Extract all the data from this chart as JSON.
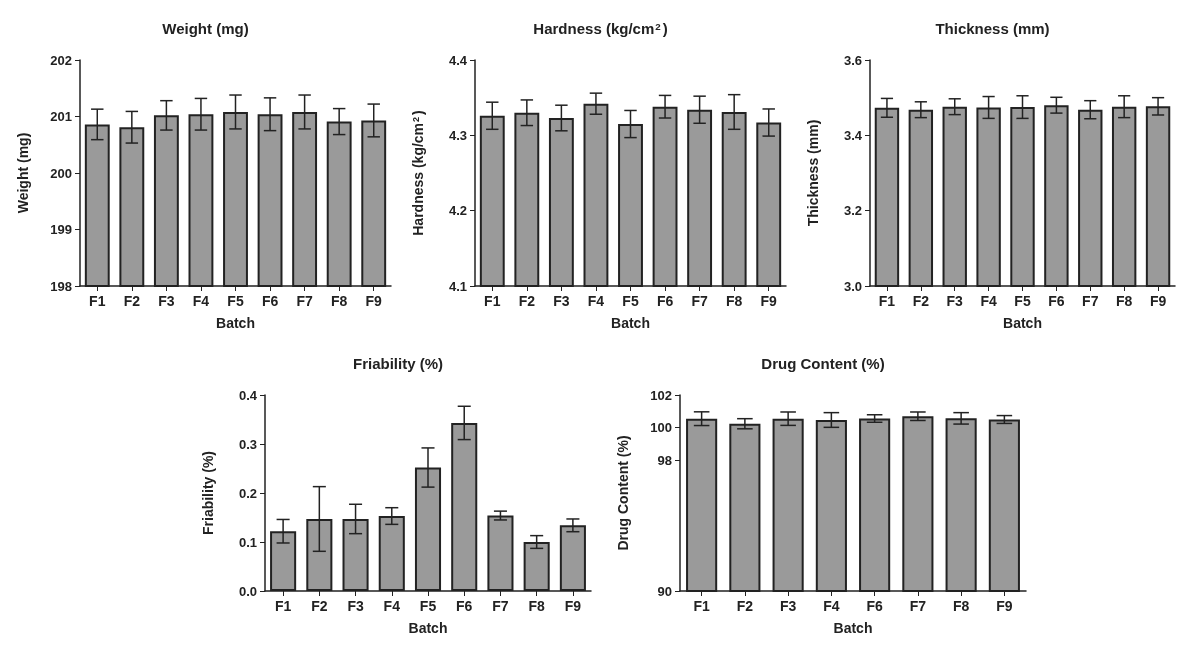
{
  "chart_data": [
    {
      "type": "bar",
      "title": "Weight (mg)",
      "xlabel": "Batch",
      "ylabel": "Weight (mg)",
      "categories": [
        "F1",
        "F2",
        "F3",
        "F4",
        "F5",
        "F6",
        "F7",
        "F8",
        "F9"
      ],
      "color": "#9a9a9a",
      "values": [
        200.86,
        200.81,
        201.02,
        201.04,
        201.08,
        201.04,
        201.08,
        200.91,
        200.93
      ],
      "errors": [
        0.27,
        0.28,
        0.26,
        0.28,
        0.3,
        0.29,
        0.3,
        0.23,
        0.29
      ],
      "ylim": [
        198,
        202
      ],
      "yticks": [
        198,
        199,
        200,
        201,
        202
      ]
    },
    {
      "type": "bar",
      "title": "Hardness (kg/cm$^{2}$)",
      "xlabel": "Batch",
      "ylabel": "Hardness (kg/cm$^{2}$)",
      "categories": [
        "F1",
        "F2",
        "F3",
        "F4",
        "F5",
        "F6",
        "F7",
        "F8",
        "F9"
      ],
      "color": "#9a9a9a",
      "values": [
        4.326,
        4.33,
        4.323,
        4.342,
        4.315,
        4.338,
        4.334,
        4.331,
        4.317
      ],
      "errors": [
        0.018,
        0.017,
        0.017,
        0.014,
        0.018,
        0.015,
        0.018,
        0.023,
        0.018
      ],
      "ylim": [
        4.1,
        4.4
      ],
      "yticks": [
        4.1,
        4.2,
        4.3,
        4.4
      ]
    },
    {
      "type": "bar",
      "title": "Thickness (mm)",
      "xlabel": "Batch",
      "ylabel": "Thickness (mm)",
      "categories": [
        "F1",
        "F2",
        "F3",
        "F4",
        "F5",
        "F6",
        "F7",
        "F8",
        "F9"
      ],
      "color": "#9a9a9a",
      "values": [
        3.473,
        3.468,
        3.476,
        3.474,
        3.475,
        3.48,
        3.468,
        3.476,
        3.477
      ],
      "errors": [
        0.025,
        0.021,
        0.021,
        0.029,
        0.03,
        0.021,
        0.024,
        0.029,
        0.023
      ],
      "ylim": [
        3,
        3.6
      ],
      "yticks": [
        {
          "value": 3,
          "label": "3.0"
        },
        3.2,
        3.4,
        3.6
      ]
    },
    {
      "type": "bar",
      "title": "Friability (%)",
      "xlabel": "Batch",
      "ylabel": "Friability (%)",
      "categories": [
        "F1",
        "F2",
        "F3",
        "F4",
        "F5",
        "F6",
        "F7",
        "F8",
        "F9"
      ],
      "color": "#9a9a9a",
      "values": [
        0.122,
        0.147,
        0.147,
        0.153,
        0.252,
        0.343,
        0.154,
        0.1,
        0.134
      ],
      "errors": [
        0.024,
        0.066,
        0.03,
        0.017,
        0.04,
        0.034,
        0.009,
        0.013,
        0.013
      ],
      "ylim": [
        0,
        0.4
      ],
      "yticks": [
        {
          "value": 0,
          "label": "0.0"
        },
        0.1,
        0.2,
        0.3,
        0.4
      ]
    },
    {
      "type": "bar",
      "title": "Drug Content (%)",
      "xlabel": "Batch",
      "ylabel": "Drug Content (%)",
      "categories": [
        "F1",
        "F2",
        "F3",
        "F4",
        "F6",
        "F7",
        "F8",
        "F9"
      ],
      "color": "#9a9a9a",
      "values": [
        100.55,
        100.24,
        100.55,
        100.47,
        100.56,
        100.7,
        100.57,
        100.5
      ],
      "errors": [
        0.42,
        0.31,
        0.41,
        0.45,
        0.23,
        0.26,
        0.35,
        0.24
      ],
      "ylim": [
        90,
        102
      ],
      "yticks": [
        90,
        98,
        100,
        102
      ]
    }
  ]
}
